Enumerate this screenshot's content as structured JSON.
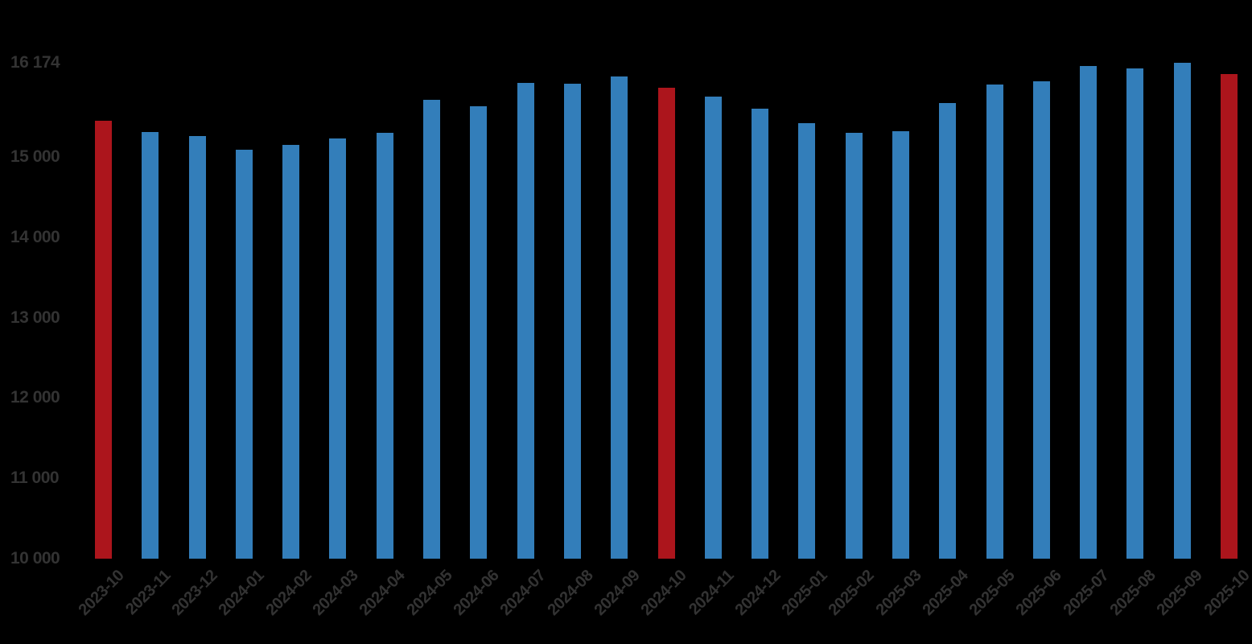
{
  "chart_data": {
    "type": "bar",
    "title": "",
    "xlabel": "",
    "ylabel": "",
    "categories": [
      "2023-10",
      "2023-11",
      "2023-12",
      "2024-01",
      "2024-02",
      "2024-03",
      "2024-04",
      "2024-05",
      "2024-06",
      "2024-07",
      "2024-08",
      "2024-09",
      "2024-10",
      "2024-11",
      "2024-12",
      "2025-01",
      "2025-02",
      "2025-03",
      "2025-04",
      "2025-05",
      "2025-06",
      "2025-07",
      "2025-08",
      "2025-09",
      "2025-10"
    ],
    "values": [
      15450,
      15310,
      15260,
      15090,
      15150,
      15230,
      15300,
      15710,
      15630,
      15920,
      15910,
      16000,
      15860,
      15750,
      15600,
      15420,
      15300,
      15320,
      15670,
      15900,
      15940,
      16130,
      16100,
      16174,
      16030
    ],
    "highlight_indices": [
      0,
      12,
      24
    ],
    "max_value_label": "16 174",
    "yticks": [
      {
        "label": "16 174",
        "value": 16174
      },
      {
        "label": "15 000",
        "value": 15000
      },
      {
        "label": "14 000",
        "value": 14000
      },
      {
        "label": "13 000",
        "value": 13000
      },
      {
        "label": "12 000",
        "value": 12000
      },
      {
        "label": "11 000",
        "value": 11000
      },
      {
        "label": "10 000",
        "value": 10000
      }
    ],
    "ylim": [
      10000,
      16174
    ],
    "grid": false,
    "legend": null,
    "colors": {
      "bar": "#337EBA",
      "highlight": "#AC151C",
      "axis_text": "#333333",
      "background": "#000000"
    }
  }
}
